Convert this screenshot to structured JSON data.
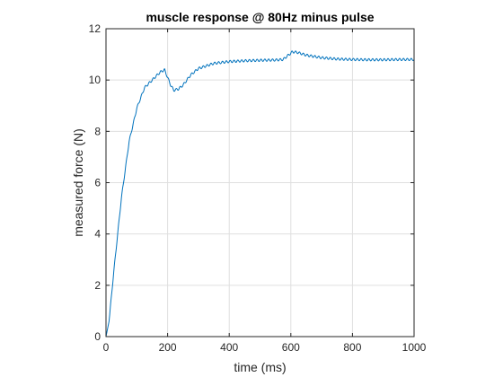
{
  "chart_data": {
    "type": "line",
    "title": "muscle response @ 80Hz minus pulse",
    "xlabel": "time (ms)",
    "ylabel": "measured force (N)",
    "xlim": [
      0,
      1000
    ],
    "ylim": [
      0,
      12
    ],
    "xticks": [
      0,
      200,
      400,
      600,
      800,
      1000
    ],
    "yticks": [
      0,
      2,
      4,
      6,
      8,
      10,
      12
    ],
    "xtick_labels": [
      "0",
      "200",
      "400",
      "600",
      "800",
      "1000"
    ],
    "ytick_labels": [
      "0",
      "2",
      "4",
      "6",
      "8",
      "10",
      "12"
    ],
    "grid": true,
    "line_color": "#0072BD",
    "ripple_period_ms": 12.5,
    "series": [
      {
        "x": [
          0,
          10,
          25,
          50,
          75,
          100,
          125,
          150,
          175,
          190,
          200,
          210,
          220,
          235,
          250,
          275,
          300,
          350,
          400,
          450,
          500,
          550,
          575,
          590,
          605,
          620,
          650,
          700,
          750,
          800,
          850,
          900,
          950,
          1000
        ],
        "y": [
          0,
          0.6,
          2.5,
          5.4,
          7.6,
          8.9,
          9.7,
          10.0,
          10.3,
          10.4,
          10.1,
          9.8,
          9.6,
          9.65,
          9.8,
          10.2,
          10.45,
          10.65,
          10.72,
          10.75,
          10.77,
          10.78,
          10.8,
          10.95,
          11.1,
          11.08,
          10.97,
          10.87,
          10.82,
          10.8,
          10.79,
          10.79,
          10.8,
          10.8
        ]
      }
    ]
  }
}
